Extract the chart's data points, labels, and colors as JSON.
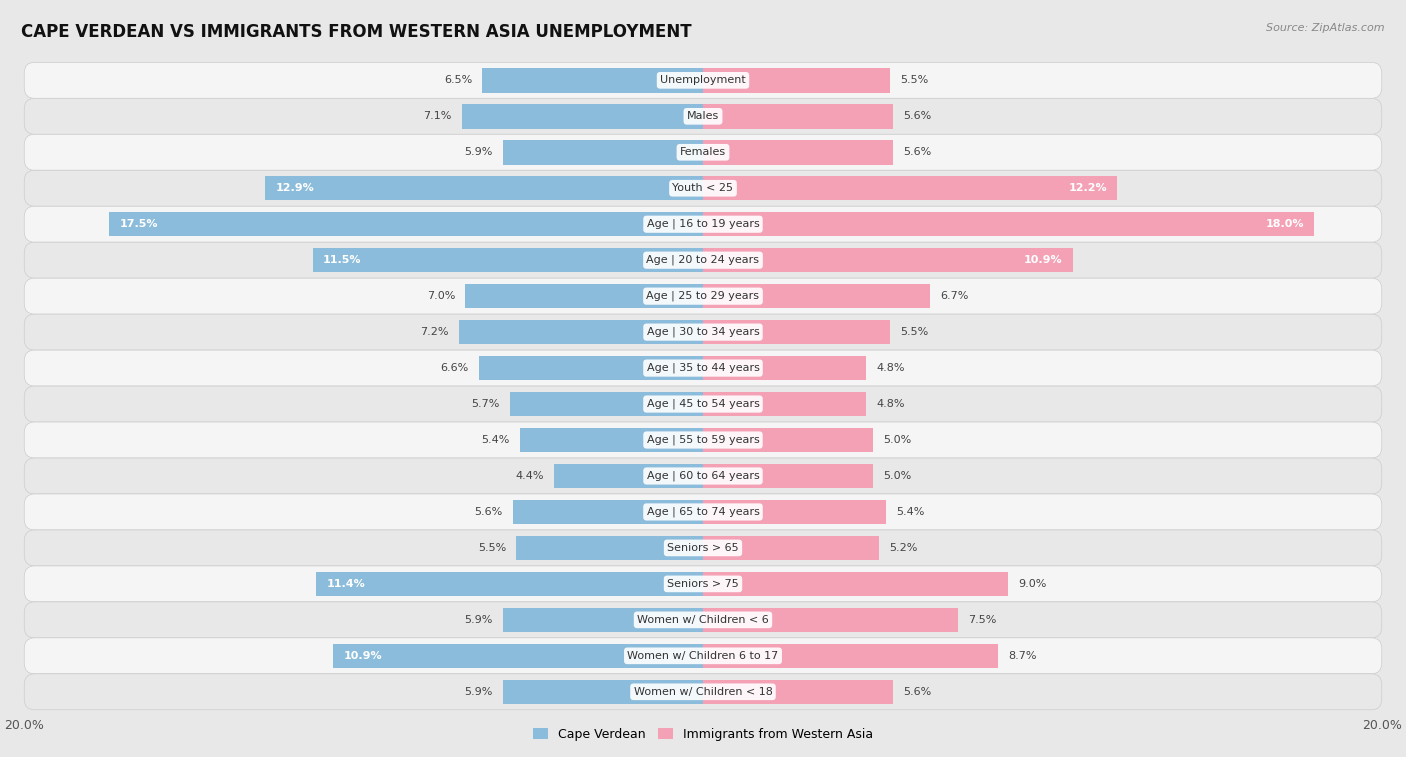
{
  "title": "CAPE VERDEAN VS IMMIGRANTS FROM WESTERN ASIA UNEMPLOYMENT",
  "source": "Source: ZipAtlas.com",
  "categories": [
    "Unemployment",
    "Males",
    "Females",
    "Youth < 25",
    "Age | 16 to 19 years",
    "Age | 20 to 24 years",
    "Age | 25 to 29 years",
    "Age | 30 to 34 years",
    "Age | 35 to 44 years",
    "Age | 45 to 54 years",
    "Age | 55 to 59 years",
    "Age | 60 to 64 years",
    "Age | 65 to 74 years",
    "Seniors > 65",
    "Seniors > 75",
    "Women w/ Children < 6",
    "Women w/ Children 6 to 17",
    "Women w/ Children < 18"
  ],
  "cape_verdean": [
    6.5,
    7.1,
    5.9,
    12.9,
    17.5,
    11.5,
    7.0,
    7.2,
    6.6,
    5.7,
    5.4,
    4.4,
    5.6,
    5.5,
    11.4,
    5.9,
    10.9,
    5.9
  ],
  "western_asia": [
    5.5,
    5.6,
    5.6,
    12.2,
    18.0,
    10.9,
    6.7,
    5.5,
    4.8,
    4.8,
    5.0,
    5.0,
    5.4,
    5.2,
    9.0,
    7.5,
    8.7,
    5.6
  ],
  "cape_verdean_color": "#8bbcdb",
  "western_asia_color": "#f4a0b5",
  "background_color": "#e8e8e8",
  "row_color_odd": "#f5f5f5",
  "row_color_even": "#e8e8e8",
  "max_val": 20.0,
  "legend_cape_verdean": "Cape Verdean",
  "legend_western_asia": "Immigrants from Western Asia"
}
